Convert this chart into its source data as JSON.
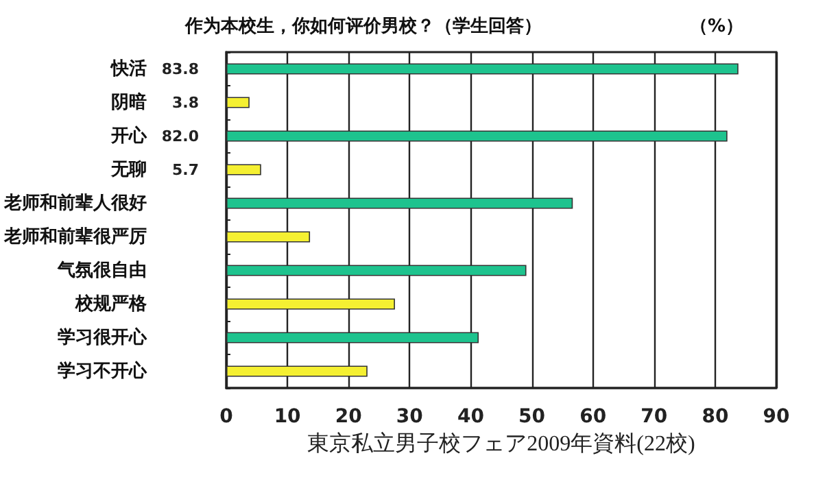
{
  "chart_data": {
    "type": "bar",
    "orientation": "horizontal",
    "title": "作为本校生，你如何评价男校？（学生回答）",
    "subtitle": "（%）",
    "xlabel": "東京私立男子校フェア2009年資料(22校)",
    "categories": [
      "快活",
      "阴暗",
      "开心",
      "无聊",
      "老师和前辈人很好",
      "老师和前辈很严厉",
      "气氛很自由",
      "校规严格",
      "学习很开心",
      "学习不开心"
    ],
    "values": [
      83.8,
      3.8,
      82.0,
      5.7,
      56.7,
      13.7,
      49.1,
      27.6,
      41.3,
      23.1
    ],
    "colors": [
      "#1ec38e",
      "#f5f032",
      "#1ec38e",
      "#f5f032",
      "#1ec38e",
      "#f5f032",
      "#1ec38e",
      "#f5f032",
      "#1ec38e",
      "#f5f032"
    ],
    "value_labels": [
      "83.8",
      "3.8",
      "82.0",
      "5.7",
      null,
      null,
      null,
      null,
      null,
      null
    ],
    "xlim": [
      0,
      90
    ],
    "xticks": [
      0,
      10,
      20,
      30,
      40,
      50,
      60,
      70,
      80,
      90
    ],
    "grid": "x"
  }
}
